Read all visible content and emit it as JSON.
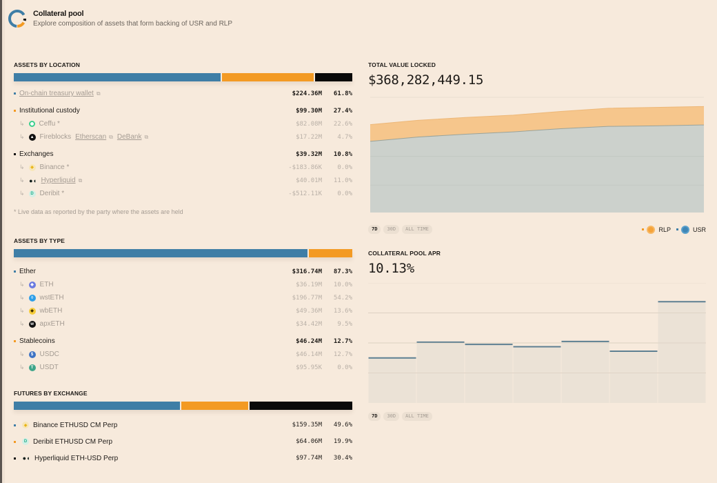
{
  "header": {
    "title": "Collateral pool",
    "subtitle": "Explore composition of assets that form backing of USR and RLP"
  },
  "colors": {
    "blue": "#3f7ea6",
    "orange": "#f39a23",
    "black": "#0a0a0a",
    "background": "#f7eadc"
  },
  "assets_by_location": {
    "title": "ASSETS BY LOCATION",
    "bar_shares": [
      61.8,
      27.4,
      10.8
    ],
    "groups": [
      {
        "name": "On-chain treasury wallet",
        "value": "$224.36M",
        "pct": "61.8%",
        "color": "#3f7ea6",
        "link": true,
        "external": true,
        "children": []
      },
      {
        "name": "Institutional custody",
        "value": "$99.30M",
        "pct": "27.4%",
        "color": "#f39a23",
        "children": [
          {
            "name": "Ceffu *",
            "icon": "ceffu-icon",
            "value": "$82.08M",
            "pct": "22.6%"
          },
          {
            "name": "Fireblocks",
            "icon": "fireblocks-icon",
            "links": [
              "Etherscan",
              "DeBank"
            ],
            "value": "$17.22M",
            "pct": "4.7%"
          }
        ]
      },
      {
        "name": "Exchanges",
        "value": "$39.32M",
        "pct": "10.8%",
        "color": "#0a0a0a",
        "children": [
          {
            "name": "Binance *",
            "icon": "binance-icon",
            "value": "-$183.86K",
            "pct": "0.0%"
          },
          {
            "name": "Hyperliquid",
            "icon": "hyperliquid-icon",
            "link": true,
            "external": true,
            "value": "$40.01M",
            "pct": "11.0%"
          },
          {
            "name": "Deribit *",
            "icon": "deribit-icon",
            "value": "-$512.11K",
            "pct": "0.0%"
          }
        ]
      }
    ],
    "note": "* Live data as reported by the party where the assets are held"
  },
  "assets_by_type": {
    "title": "ASSETS BY TYPE",
    "bar_shares": [
      87.3,
      12.7
    ],
    "groups": [
      {
        "name": "Ether",
        "value": "$316.74M",
        "pct": "87.3%",
        "color": "#3f7ea6",
        "children": [
          {
            "name": "ETH",
            "icon": "eth-icon",
            "value": "$36.19M",
            "pct": "10.0%"
          },
          {
            "name": "wstETH",
            "icon": "wsteth-icon",
            "value": "$196.77M",
            "pct": "54.2%"
          },
          {
            "name": "wbETH",
            "icon": "wbeth-icon",
            "value": "$49.36M",
            "pct": "13.6%"
          },
          {
            "name": "apxETH",
            "icon": "apxeth-icon",
            "value": "$34.42M",
            "pct": "9.5%"
          }
        ]
      },
      {
        "name": "Stablecoins",
        "value": "$46.24M",
        "pct": "12.7%",
        "color": "#f39a23",
        "children": [
          {
            "name": "USDC",
            "icon": "usdc-icon",
            "value": "$46.14M",
            "pct": "12.7%"
          },
          {
            "name": "USDT",
            "icon": "usdt-icon",
            "value": "$95.95K",
            "pct": "0.0%"
          }
        ]
      }
    ]
  },
  "futures_by_exchange": {
    "title": "FUTURES BY EXCHANGE",
    "bar_shares": [
      49.6,
      19.9,
      30.4
    ],
    "items": [
      {
        "name": "Binance ETHUSD CM Perp",
        "icon": "binance-icon",
        "value": "$159.35M",
        "pct": "49.6%",
        "color": "#3f7ea6"
      },
      {
        "name": "Deribit ETHUSD CM Perp",
        "icon": "deribit-icon",
        "value": "$64.06M",
        "pct": "19.9%",
        "color": "#f39a23"
      },
      {
        "name": "Hyperliquid ETH-USD Perp",
        "icon": "hyperliquid-icon",
        "value": "$97.74M",
        "pct": "30.4%",
        "color": "#0a0a0a"
      }
    ]
  },
  "tvl": {
    "title": "TOTAL VALUE LOCKED",
    "value": "$368,282,449.15",
    "ranges": [
      "7D",
      "30D",
      "ALL TIME"
    ],
    "active_range": "7D",
    "legend": [
      {
        "label": "RLP",
        "color": "#f39a23"
      },
      {
        "label": "USR",
        "color": "#3f7ea6"
      }
    ]
  },
  "apr": {
    "title": "COLLATERAL POOL APR",
    "value": "10.13%",
    "ranges": [
      "7D",
      "30D",
      "ALL TIME"
    ],
    "active_range": "7D"
  },
  "chart_data": [
    {
      "type": "area",
      "title": "TOTAL VALUE LOCKED",
      "stacked": true,
      "x": [
        0,
        1,
        2,
        3,
        4,
        5,
        6,
        7
      ],
      "ylim": [
        0,
        400
      ],
      "series": [
        {
          "name": "USR",
          "values": [
            247,
            262,
            272,
            280,
            291,
            299,
            301,
            304
          ]
        },
        {
          "name": "RLP",
          "values": [
            58,
            58,
            58,
            58,
            60,
            63,
            64,
            64
          ]
        }
      ],
      "grid": true,
      "legend": "bottom-right"
    },
    {
      "type": "bar",
      "title": "COLLATERAL POOL APR",
      "categories": [
        "1",
        "2",
        "3",
        "4",
        "5",
        "6",
        "7"
      ],
      "values": [
        6.0,
        8.1,
        7.8,
        7.5,
        8.2,
        6.9,
        13.5
      ],
      "ylim": [
        0,
        16
      ],
      "grid": true
    }
  ]
}
